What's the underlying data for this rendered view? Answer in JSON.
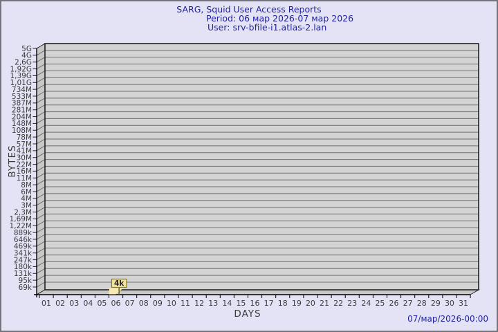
{
  "header": {
    "line1": "SARG, Squid User Access Reports",
    "line2": "Period: 06 мар 2026-07 мар 2026",
    "line3": "User: srv-bfile-i1.atlas-2.lan"
  },
  "axes": {
    "y_title": "BYTES",
    "x_title": "DAYS"
  },
  "footer": {
    "generated": "07/мар/2026-00:00"
  },
  "colors": {
    "background": "#e3e3f5",
    "border": "#73737e",
    "title_text": "#1f1fa0",
    "plot_background": "#d3d3d3",
    "wall": "#c8c8c8",
    "gridline": "#6f6f6f",
    "frame": "#222222",
    "tick_label": "#3b3b3b",
    "flag_fill": "#f0e39b",
    "flag_border": "#8c7b1e",
    "flag_stem": "#6b5c12",
    "flag_pennant": "#f6e9b4"
  },
  "chart_data": {
    "type": "bar",
    "title": "SARG, Squid User Access Reports",
    "period": "06 мар 2026-07 мар 2026",
    "user": "srv-bfile-i1.atlas-2.lan",
    "xlabel": "DAYS",
    "ylabel": "BYTES",
    "y_scale": "log",
    "unit": "bytes",
    "grid": "horizontal-only",
    "y_tick_labels": [
      "5G",
      "4G",
      "2,6G",
      "1,92G",
      "1,39G",
      "1,01G",
      "734M",
      "533M",
      "387M",
      "281M",
      "204M",
      "148M",
      "108M",
      "78M",
      "57M",
      "41M",
      "30M",
      "22M",
      "16M",
      "11M",
      "8M",
      "6M",
      "4M",
      "3M",
      "2,3M",
      "1,69M",
      "1,22M",
      "889k",
      "646k",
      "469k",
      "341k",
      "247k",
      "180k",
      "131k",
      "95k",
      "69k"
    ],
    "categories": [
      "01",
      "02",
      "03",
      "04",
      "05",
      "06",
      "07",
      "08",
      "09",
      "10",
      "11",
      "12",
      "13",
      "14",
      "15",
      "16",
      "17",
      "18",
      "19",
      "20",
      "21",
      "22",
      "23",
      "24",
      "25",
      "26",
      "27",
      "28",
      "29",
      "30",
      "31"
    ],
    "values": [
      null,
      null,
      null,
      null,
      null,
      4000,
      null,
      null,
      null,
      null,
      null,
      null,
      null,
      null,
      null,
      null,
      null,
      null,
      null,
      null,
      null,
      null,
      null,
      null,
      null,
      null,
      null,
      null,
      null,
      null,
      null
    ],
    "annotations": [
      {
        "category": "06",
        "label": "4k",
        "value_bytes": 4000
      }
    ],
    "generated": "07/мар/2026-00:00"
  }
}
